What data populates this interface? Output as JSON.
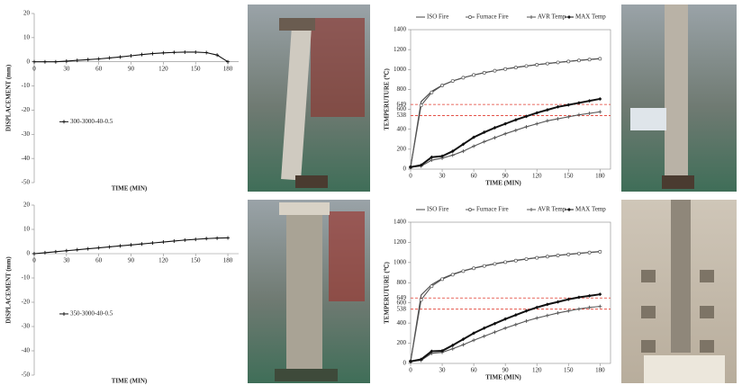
{
  "chart_data": [
    {
      "type": "line",
      "x_label": "TIME (MIN)",
      "y_label": "DISPLACEMENT (mm)",
      "xlim": [
        0,
        190
      ],
      "xticks": [
        0,
        30,
        60,
        90,
        120,
        150,
        180
      ],
      "ylim": [
        -50,
        20
      ],
      "yticks": [
        20,
        10,
        0,
        -10,
        -20,
        -30,
        -40,
        -50
      ],
      "x": [
        0,
        10,
        20,
        30,
        40,
        50,
        60,
        70,
        80,
        90,
        100,
        110,
        120,
        130,
        140,
        150,
        160,
        170,
        180
      ],
      "series": [
        {
          "name": "300-3000-40-0.5",
          "color": "#111111",
          "marker": "plus",
          "values": [
            0,
            0,
            0,
            0.3,
            0.6,
            0.9,
            1.2,
            1.6,
            2.0,
            2.5,
            3.0,
            3.4,
            3.7,
            3.9,
            4.0,
            4.0,
            3.8,
            2.8,
            0
          ]
        }
      ]
    },
    {
      "type": "line",
      "x_label": "TIME (MIN)",
      "y_label": "DISPLACEMENT (mm)",
      "xlim": [
        0,
        190
      ],
      "xticks": [
        0,
        30,
        60,
        90,
        120,
        150,
        180
      ],
      "ylim": [
        -50,
        20
      ],
      "yticks": [
        20,
        10,
        0,
        -10,
        -20,
        -30,
        -40,
        -50
      ],
      "x": [
        0,
        10,
        20,
        30,
        40,
        50,
        60,
        70,
        80,
        90,
        100,
        110,
        120,
        130,
        140,
        150,
        160,
        170,
        180
      ],
      "series": [
        {
          "name": "350-3000-40-0.5",
          "color": "#111111",
          "marker": "plus",
          "values": [
            0,
            0.4,
            0.8,
            1.2,
            1.6,
            2.0,
            2.4,
            2.8,
            3.2,
            3.6,
            4.0,
            4.4,
            4.8,
            5.2,
            5.6,
            5.9,
            6.2,
            6.4,
            6.5
          ]
        }
      ]
    },
    {
      "type": "line",
      "x_label": "TIME (MIN)",
      "y_label": "TEMPERUTURE (℃)",
      "xlim": [
        0,
        190
      ],
      "xticks": [
        0,
        30,
        60,
        90,
        120,
        150,
        180
      ],
      "ylim": [
        0,
        1400
      ],
      "yticks": [
        0,
        200,
        400,
        600,
        800,
        1000,
        1200,
        1400
      ],
      "hlines": [
        649,
        538
      ],
      "hline_color": "#e03a2f",
      "x": [
        0,
        10,
        20,
        30,
        40,
        50,
        60,
        70,
        80,
        90,
        100,
        110,
        120,
        130,
        140,
        150,
        160,
        170,
        180
      ],
      "series": [
        {
          "name": "ISO Fire",
          "color": "#444444",
          "marker": "none",
          "values": [
            20,
            678,
            781,
            842,
            885,
            918,
            945,
            968,
            988,
            1006,
            1022,
            1036,
            1049,
            1061,
            1072,
            1082,
            1092,
            1101,
            1110
          ]
        },
        {
          "name": "Furnace Fire",
          "color": "#555555",
          "marker": "circle",
          "values": [
            20,
            640,
            770,
            840,
            885,
            918,
            945,
            968,
            988,
            1005,
            1020,
            1035,
            1048,
            1060,
            1071,
            1081,
            1091,
            1100,
            1108
          ]
        },
        {
          "name": "AVR Temp",
          "color": "#555555",
          "marker": "plus",
          "values": [
            20,
            30,
            90,
            110,
            140,
            180,
            230,
            275,
            315,
            355,
            390,
            425,
            455,
            485,
            505,
            525,
            545,
            560,
            575
          ]
        },
        {
          "name": "MAX Temp",
          "color": "#111111",
          "marker": "diamond",
          "values": [
            20,
            40,
            120,
            130,
            180,
            250,
            320,
            370,
            415,
            455,
            495,
            530,
            565,
            595,
            625,
            645,
            665,
            685,
            705
          ]
        }
      ]
    },
    {
      "type": "line",
      "x_label": "TIME (MIN)",
      "y_label": "TEMPERUTURE (℃)",
      "xlim": [
        0,
        190
      ],
      "xticks": [
        0,
        30,
        60,
        90,
        120,
        150,
        180
      ],
      "ylim": [
        0,
        1400
      ],
      "yticks": [
        0,
        200,
        400,
        600,
        800,
        1000,
        1200,
        1400
      ],
      "hlines": [
        649,
        538
      ],
      "hline_color": "#e03a2f",
      "x": [
        0,
        10,
        20,
        30,
        40,
        50,
        60,
        70,
        80,
        90,
        100,
        110,
        120,
        130,
        140,
        150,
        160,
        170,
        180
      ],
      "series": [
        {
          "name": "ISO Fire",
          "color": "#444444",
          "marker": "none",
          "values": [
            20,
            678,
            781,
            842,
            885,
            918,
            945,
            968,
            988,
            1006,
            1022,
            1036,
            1049,
            1061,
            1072,
            1082,
            1092,
            1101,
            1110
          ]
        },
        {
          "name": "Furnace Fire",
          "color": "#555555",
          "marker": "circle",
          "values": [
            20,
            630,
            765,
            835,
            880,
            915,
            943,
            966,
            986,
            1004,
            1019,
            1034,
            1047,
            1059,
            1070,
            1080,
            1090,
            1099,
            1107
          ]
        },
        {
          "name": "AVR Temp",
          "color": "#555555",
          "marker": "plus",
          "values": [
            20,
            30,
            100,
            110,
            145,
            185,
            230,
            270,
            310,
            350,
            385,
            420,
            450,
            475,
            500,
            520,
            540,
            555,
            565
          ]
        },
        {
          "name": "MAX Temp",
          "color": "#111111",
          "marker": "diamond",
          "values": [
            20,
            40,
            120,
            125,
            180,
            240,
            300,
            350,
            395,
            440,
            480,
            520,
            555,
            585,
            610,
            635,
            655,
            670,
            685
          ]
        }
      ]
    }
  ]
}
